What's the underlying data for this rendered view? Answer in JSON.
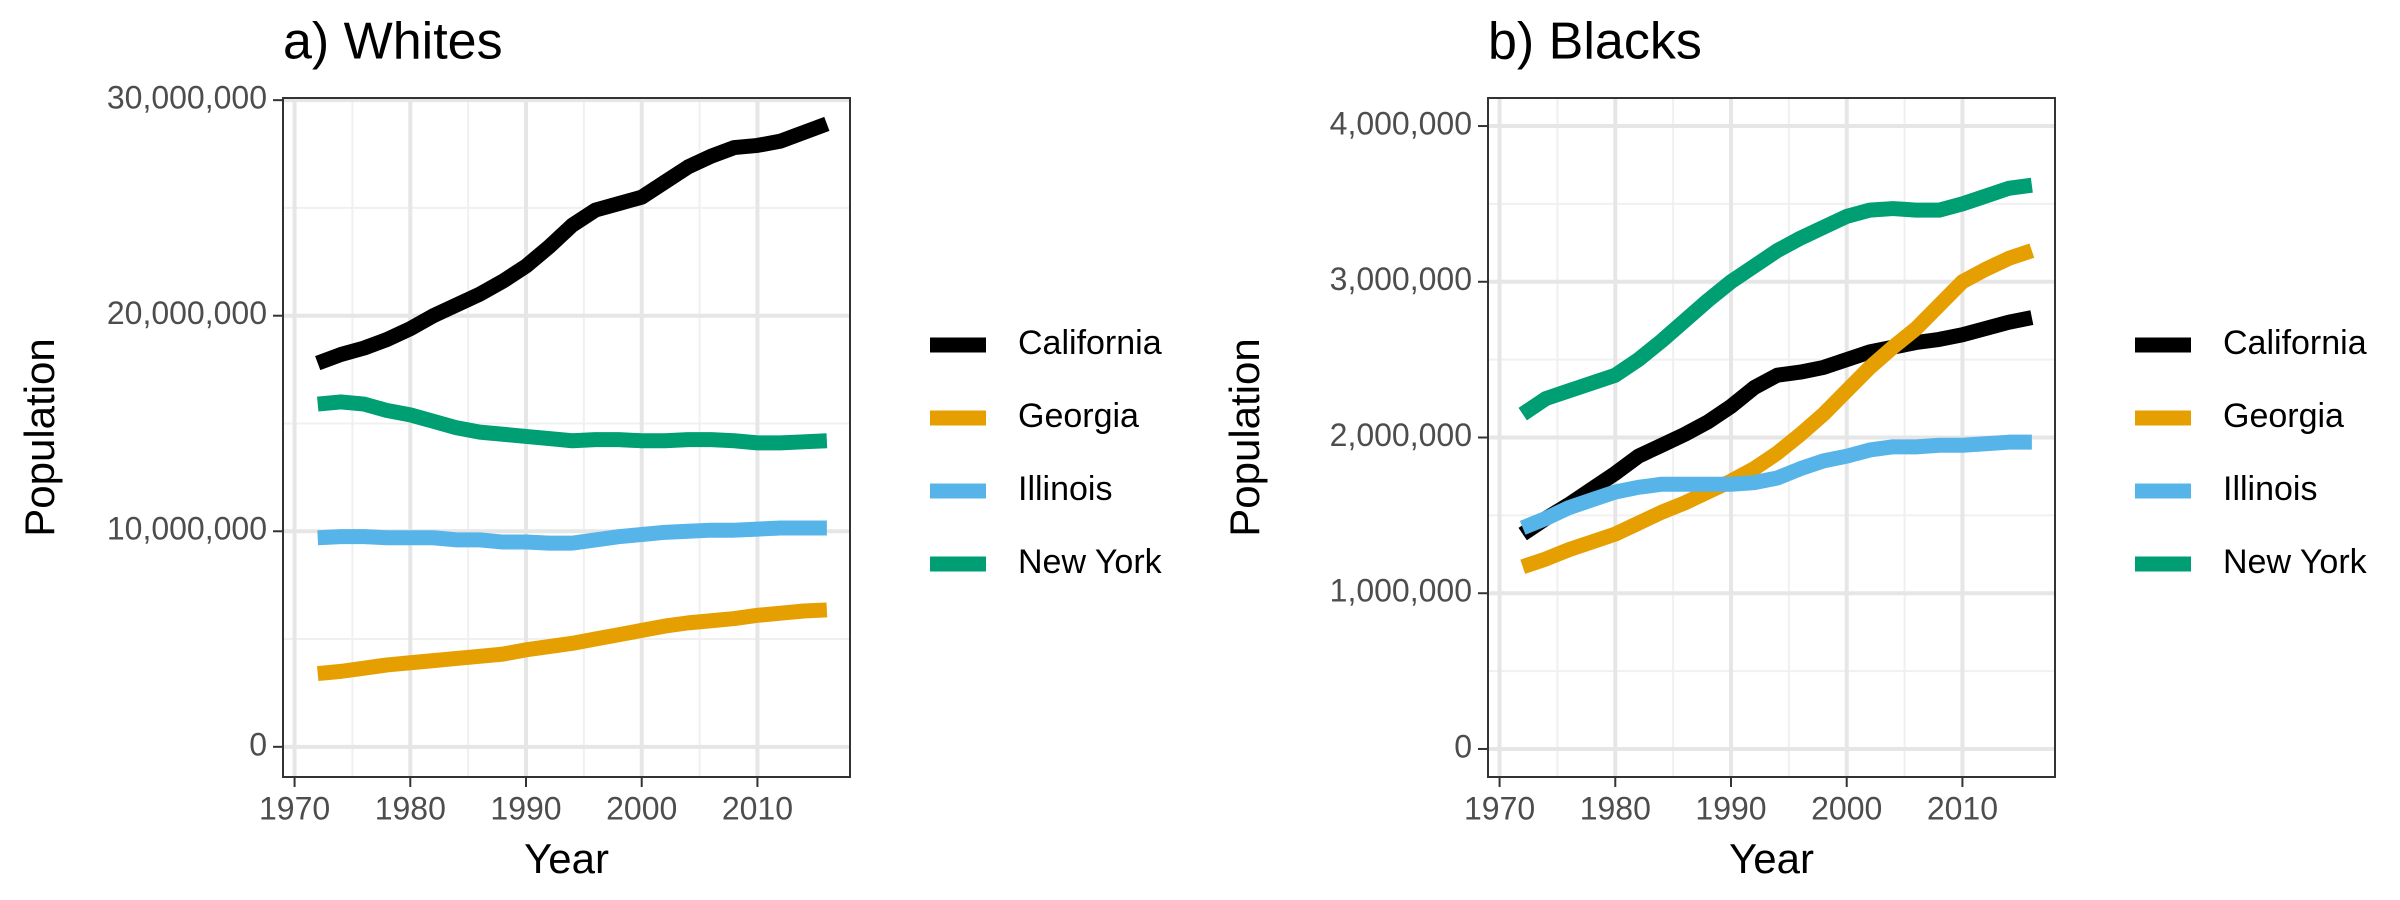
{
  "chart_data": [
    {
      "type": "line",
      "title": "a) Whites",
      "x_label": "Year",
      "y_label": "Population",
      "x": [
        1972,
        1974,
        1976,
        1978,
        1980,
        1982,
        1984,
        1986,
        1988,
        1990,
        1992,
        1994,
        1996,
        1998,
        2000,
        2002,
        2004,
        2006,
        2008,
        2010,
        2012,
        2014,
        2016
      ],
      "xlim": [
        1969,
        2018
      ],
      "xticks": [
        1970,
        1980,
        1990,
        2000,
        2010
      ],
      "ylim": [
        -1400000,
        30100000
      ],
      "yticks": [
        0,
        {
          "value": 10000000,
          "label": "10,000,000"
        },
        {
          "value": 20000000,
          "label": "20,000,000"
        },
        {
          "value": 30000000,
          "label": "30,000,000"
        }
      ],
      "grid": true,
      "series": [
        {
          "name": "California",
          "color": "#000000",
          "values": [
            17800000,
            18200000,
            18500000,
            18900000,
            19400000,
            20000000,
            20500000,
            21000000,
            21600000,
            22300000,
            23200000,
            24200000,
            24900000,
            25200000,
            25500000,
            26200000,
            26900000,
            27400000,
            27800000,
            27900000,
            28100000,
            28500000,
            28900000
          ]
        },
        {
          "name": "Georgia",
          "color": "#e69f00",
          "values": [
            3400000,
            3500000,
            3650000,
            3800000,
            3900000,
            4000000,
            4100000,
            4200000,
            4300000,
            4500000,
            4650000,
            4800000,
            5000000,
            5200000,
            5400000,
            5600000,
            5750000,
            5850000,
            5950000,
            6100000,
            6200000,
            6300000,
            6350000
          ]
        },
        {
          "name": "Illinois",
          "color": "#56b4e9",
          "values": [
            9700000,
            9750000,
            9750000,
            9700000,
            9700000,
            9700000,
            9600000,
            9600000,
            9500000,
            9500000,
            9450000,
            9450000,
            9600000,
            9750000,
            9850000,
            9950000,
            10000000,
            10050000,
            10050000,
            10100000,
            10150000,
            10150000,
            10150000
          ]
        },
        {
          "name": "New York",
          "color": "#009e73",
          "values": [
            15900000,
            16000000,
            15900000,
            15600000,
            15400000,
            15100000,
            14800000,
            14600000,
            14500000,
            14400000,
            14300000,
            14200000,
            14250000,
            14250000,
            14200000,
            14200000,
            14250000,
            14250000,
            14200000,
            14100000,
            14100000,
            14150000,
            14200000
          ]
        }
      ]
    },
    {
      "type": "line",
      "title": "b) Blacks",
      "x_label": "Year",
      "y_label": "Population",
      "x": [
        1972,
        1974,
        1976,
        1978,
        1980,
        1982,
        1984,
        1986,
        1988,
        1990,
        1992,
        1994,
        1996,
        1998,
        2000,
        2002,
        2004,
        2006,
        2008,
        2010,
        2012,
        2014,
        2016
      ],
      "xlim": [
        1969,
        2018
      ],
      "xticks": [
        1970,
        1980,
        1990,
        2000,
        2010
      ],
      "ylim": [
        -180000,
        4180000
      ],
      "yticks": [
        0,
        {
          "value": 1000000,
          "label": "1,000,000"
        },
        {
          "value": 2000000,
          "label": "2,000,000"
        },
        {
          "value": 3000000,
          "label": "3,000,000"
        },
        {
          "value": 4000000,
          "label": "4,000,000"
        }
      ],
      "grid": true,
      "series": [
        {
          "name": "California",
          "color": "#000000",
          "values": [
            1380000,
            1480000,
            1570000,
            1670000,
            1770000,
            1880000,
            1950000,
            2020000,
            2100000,
            2200000,
            2320000,
            2400000,
            2420000,
            2450000,
            2500000,
            2550000,
            2580000,
            2610000,
            2630000,
            2660000,
            2700000,
            2740000,
            2770000
          ]
        },
        {
          "name": "Georgia",
          "color": "#e69f00",
          "values": [
            1170000,
            1220000,
            1280000,
            1330000,
            1380000,
            1450000,
            1520000,
            1580000,
            1650000,
            1720000,
            1800000,
            1900000,
            2020000,
            2150000,
            2300000,
            2450000,
            2580000,
            2700000,
            2850000,
            3000000,
            3080000,
            3150000,
            3200000
          ]
        },
        {
          "name": "Illinois",
          "color": "#56b4e9",
          "values": [
            1420000,
            1480000,
            1550000,
            1600000,
            1650000,
            1680000,
            1700000,
            1700000,
            1700000,
            1700000,
            1710000,
            1740000,
            1800000,
            1850000,
            1880000,
            1920000,
            1940000,
            1940000,
            1950000,
            1950000,
            1960000,
            1970000,
            1970000
          ]
        },
        {
          "name": "New York",
          "color": "#009e73",
          "values": [
            2150000,
            2250000,
            2300000,
            2350000,
            2400000,
            2500000,
            2620000,
            2750000,
            2880000,
            3000000,
            3100000,
            3200000,
            3280000,
            3350000,
            3420000,
            3460000,
            3470000,
            3460000,
            3460000,
            3500000,
            3550000,
            3600000,
            3620000
          ]
        }
      ]
    }
  ]
}
